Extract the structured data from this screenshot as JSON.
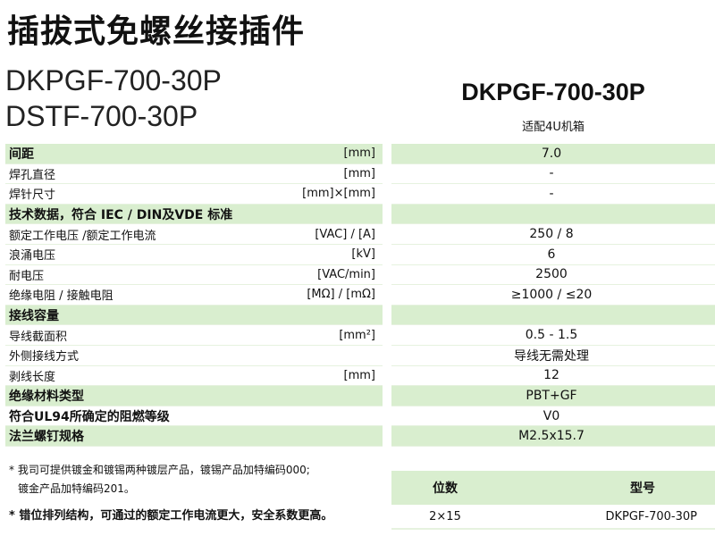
{
  "title": "插拔式免螺丝接插件",
  "models": [
    "DKPGF-700-30P",
    "DSTF-700-30P"
  ],
  "right_header": {
    "model": "DKPGF-700-30P",
    "subtitle": "适配4U机箱"
  },
  "rows": [
    {
      "label": "间距",
      "unit": "[mm]",
      "value": "7.0",
      "green": true,
      "bold": true
    },
    {
      "label": "焊孔直径",
      "unit": "[mm]",
      "value": "-"
    },
    {
      "label": "焊针尺寸",
      "unit": "[mm]×[mm]",
      "value": "-"
    },
    {
      "label": "技术数据，符合 IEC / DIN及VDE 标准",
      "unit": "",
      "value": "",
      "green": true,
      "bold": true
    },
    {
      "label": "额定工作电压 /额定工作电流",
      "unit": "[VAC] /  [A]",
      "value": "250 / 8"
    },
    {
      "label": "浪涌电压",
      "unit": "[kV]",
      "value": "6"
    },
    {
      "label": "耐电压",
      "unit": "[VAC/min]",
      "value": "2500"
    },
    {
      "label": "绝缘电阻 / 接触电阻",
      "unit": "[MΩ] / [mΩ]",
      "value": "≥1000 / ≤20"
    },
    {
      "label": "接线容量",
      "unit": "",
      "value": "",
      "green": true,
      "bold": true
    },
    {
      "label": "导线截面积",
      "unit": "[mm²]",
      "value": "0.5 - 1.5"
    },
    {
      "label": "外侧接线方式",
      "unit": "",
      "value": "导线无需处理"
    },
    {
      "label": "剥线长度",
      "unit": "[mm]",
      "value": "12"
    },
    {
      "label": "绝缘材料类型",
      "unit": "",
      "value": "PBT+GF",
      "green": true,
      "bold": true
    },
    {
      "label": "符合UL94所确定的阻燃等级",
      "unit": "",
      "value": "V0",
      "bold": true
    },
    {
      "label": "法兰螺钉规格",
      "unit": "",
      "value": "M2.5x15.7",
      "green": true,
      "bold": true
    }
  ],
  "notes": [
    "* 我司可提供镀金和镀锡两种镀层产品，镀锡产品加特编码000;",
    "镀金产品加特编码201。",
    "* 错位排列结构，可通过的额定工作电流更大，安全系数更高。"
  ],
  "order_table": {
    "headers": [
      "位数",
      "型号"
    ],
    "rows": [
      [
        "2×15",
        "DKPGF-700-30P"
      ]
    ]
  },
  "colors": {
    "green_band": "#d9eecf"
  }
}
